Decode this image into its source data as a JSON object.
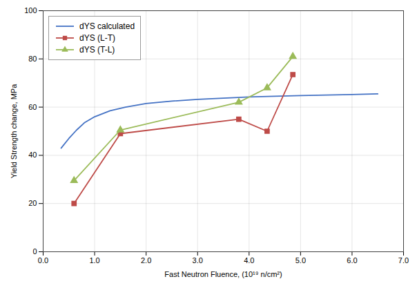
{
  "chart_data": {
    "type": "line",
    "xlabel": "Fast Neutron Fluence, (10¹⁹ n/cm²)",
    "ylabel": "Yield Strength change, MPa",
    "xlim": [
      0,
      7
    ],
    "ylim": [
      0,
      100
    ],
    "xticks": [
      0,
      1,
      2,
      3,
      4,
      5,
      6,
      7
    ],
    "yticks": [
      0,
      20,
      40,
      60,
      80,
      100
    ],
    "grid": true,
    "legend": "upper left",
    "series": [
      {
        "name": "dYS calculated",
        "color": "#4472C4",
        "marker": "none",
        "x": [
          0.35,
          0.5,
          0.65,
          0.8,
          1.0,
          1.3,
          1.6,
          2.0,
          2.5,
          3.0,
          3.5,
          4.0,
          4.5,
          5.0,
          5.5,
          6.0,
          6.5
        ],
        "values": [
          43.0,
          47.0,
          50.5,
          53.5,
          56.0,
          58.5,
          60.0,
          61.5,
          62.5,
          63.2,
          63.7,
          64.2,
          64.5,
          64.8,
          65.0,
          65.2,
          65.5
        ]
      },
      {
        "name": "dYS (L-T)",
        "color": "#BE4B48",
        "marker": "square",
        "x": [
          0.6,
          1.5,
          3.8,
          4.35,
          4.85
        ],
        "values": [
          20.0,
          49.0,
          55.0,
          50.0,
          73.5
        ]
      },
      {
        "name": "dYS (T-L)",
        "color": "#9BBB59",
        "marker": "triangle",
        "x": [
          0.6,
          1.5,
          3.8,
          4.35,
          4.85
        ],
        "values": [
          29.5,
          50.5,
          62.0,
          68.0,
          81.0
        ]
      }
    ]
  }
}
